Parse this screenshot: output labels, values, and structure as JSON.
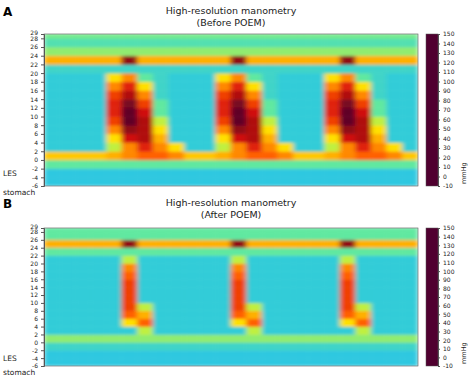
{
  "chart_data": [
    {
      "type": "heatmap",
      "panel": "A",
      "title": "High-resolution manometry",
      "subtitle": "(Before POEM)",
      "xlim": [
        0,
        24
      ],
      "ylim": [
        -6,
        29
      ],
      "yticks": [
        29,
        28,
        26,
        24,
        22,
        20,
        18,
        16,
        14,
        12,
        10,
        8,
        6,
        4,
        2,
        0,
        -2,
        -4,
        -6
      ],
      "tick_labels": "y",
      "annotations": [
        {
          "text": "LES",
          "y": -3
        },
        {
          "text": "stomach",
          "y": -7.5
        }
      ],
      "x_edges": [
        0,
        1,
        2,
        3,
        4,
        5,
        6,
        7,
        8,
        9,
        10,
        11,
        12,
        13,
        14,
        15,
        16,
        17,
        18,
        19,
        20,
        21,
        22,
        23,
        24
      ],
      "y_edges": [
        -6,
        -4,
        -2,
        0,
        2,
        4,
        6,
        8,
        10,
        12,
        14,
        16,
        18,
        20,
        22,
        24,
        26,
        28,
        29
      ],
      "z": [
        [
          12,
          12,
          12,
          12,
          12,
          12,
          12,
          12,
          12,
          12,
          12,
          12,
          12,
          12,
          12,
          12,
          12,
          12,
          12,
          12,
          12,
          12,
          12,
          12
        ],
        [
          12,
          12,
          12,
          12,
          12,
          12,
          12,
          12,
          12,
          12,
          12,
          12,
          12,
          12,
          12,
          12,
          12,
          12,
          12,
          12,
          12,
          12,
          12,
          12
        ],
        [
          20,
          20,
          20,
          20,
          20,
          20,
          20,
          20,
          20,
          20,
          20,
          20,
          20,
          20,
          20,
          20,
          20,
          20,
          20,
          20,
          20,
          20,
          20,
          20
        ],
        [
          45,
          45,
          45,
          45,
          50,
          60,
          70,
          70,
          60,
          45,
          45,
          50,
          60,
          70,
          70,
          60,
          45,
          45,
          50,
          60,
          70,
          70,
          60,
          45
        ],
        [
          13,
          13,
          13,
          13,
          30,
          60,
          90,
          60,
          40,
          13,
          13,
          30,
          60,
          90,
          60,
          40,
          13,
          13,
          30,
          60,
          90,
          60,
          40,
          13
        ],
        [
          13,
          13,
          13,
          13,
          40,
          100,
          110,
          50,
          13,
          13,
          13,
          40,
          100,
          110,
          50,
          13,
          13,
          13,
          40,
          100,
          110,
          50,
          13,
          13
        ],
        [
          13,
          13,
          13,
          13,
          60,
          120,
          110,
          40,
          13,
          13,
          13,
          60,
          120,
          110,
          40,
          13,
          13,
          13,
          60,
          120,
          110,
          40,
          13,
          13
        ],
        [
          13,
          13,
          13,
          13,
          80,
          140,
          110,
          30,
          13,
          13,
          13,
          80,
          140,
          110,
          30,
          13,
          13,
          13,
          80,
          140,
          110,
          30,
          13,
          13
        ],
        [
          13,
          13,
          13,
          13,
          90,
          140,
          100,
          20,
          13,
          13,
          13,
          90,
          140,
          100,
          20,
          13,
          13,
          13,
          90,
          140,
          100,
          20,
          13,
          13
        ],
        [
          13,
          13,
          13,
          13,
          90,
          130,
          80,
          20,
          13,
          13,
          13,
          90,
          130,
          80,
          20,
          13,
          13,
          13,
          90,
          130,
          80,
          20,
          13,
          13
        ],
        [
          13,
          13,
          13,
          13,
          80,
          110,
          60,
          15,
          13,
          13,
          13,
          80,
          110,
          60,
          15,
          13,
          13,
          13,
          80,
          110,
          60,
          15,
          13,
          13
        ],
        [
          13,
          13,
          13,
          13,
          60,
          90,
          40,
          15,
          13,
          13,
          13,
          60,
          90,
          40,
          15,
          13,
          13,
          13,
          60,
          90,
          40,
          15,
          13,
          13
        ],
        [
          13,
          13,
          13,
          13,
          40,
          60,
          20,
          15,
          13,
          13,
          13,
          40,
          60,
          20,
          15,
          13,
          13,
          13,
          40,
          60,
          20,
          15,
          13,
          13
        ],
        [
          15,
          15,
          15,
          15,
          15,
          15,
          15,
          15,
          15,
          15,
          15,
          15,
          15,
          15,
          15,
          15,
          15,
          15,
          15,
          15,
          15,
          15,
          15,
          15
        ],
        [
          50,
          50,
          50,
          50,
          50,
          120,
          50,
          50,
          50,
          50,
          50,
          50,
          120,
          50,
          50,
          50,
          50,
          50,
          50,
          120,
          50,
          50,
          50,
          50
        ],
        [
          25,
          25,
          25,
          25,
          25,
          25,
          25,
          25,
          25,
          25,
          25,
          25,
          25,
          25,
          25,
          25,
          25,
          25,
          25,
          25,
          25,
          25,
          25,
          25
        ],
        [
          18,
          18,
          18,
          18,
          18,
          18,
          18,
          18,
          18,
          18,
          18,
          18,
          18,
          18,
          18,
          18,
          18,
          18,
          18,
          18,
          18,
          18,
          18,
          18
        ],
        [
          22,
          22,
          22,
          22,
          22,
          22,
          22,
          22,
          22,
          22,
          22,
          22,
          22,
          22,
          22,
          22,
          22,
          22,
          22,
          22,
          22,
          22,
          22,
          22
        ]
      ],
      "colorbar": {
        "range": [
          -10,
          150
        ],
        "ticks": [
          150,
          140,
          130,
          120,
          110,
          100,
          90,
          80,
          70,
          60,
          50,
          40,
          30,
          20,
          10,
          0,
          -10
        ],
        "label": "mmHg"
      }
    },
    {
      "type": "heatmap",
      "panel": "B",
      "title": "High-resolution manometry",
      "subtitle": "(After POEM)",
      "xlim": [
        0,
        24
      ],
      "ylim": [
        -6,
        29
      ],
      "yticks": [
        29,
        28,
        26,
        24,
        22,
        20,
        18,
        16,
        14,
        12,
        10,
        8,
        6,
        4,
        2,
        0,
        -2,
        -4,
        -6
      ],
      "tick_labels": "y",
      "annotations": [
        {
          "text": "LES",
          "y": -4
        },
        {
          "text": "stomach",
          "y": -7.5
        }
      ],
      "x_edges": [
        0,
        1,
        2,
        3,
        4,
        5,
        6,
        7,
        8,
        9,
        10,
        11,
        12,
        13,
        14,
        15,
        16,
        17,
        18,
        19,
        20,
        21,
        22,
        23,
        24
      ],
      "y_edges": [
        -6,
        -4,
        -2,
        0,
        2,
        4,
        6,
        8,
        10,
        12,
        14,
        16,
        18,
        20,
        22,
        24,
        26,
        28,
        29
      ],
      "z": [
        [
          12,
          12,
          12,
          12,
          12,
          12,
          12,
          12,
          12,
          12,
          12,
          12,
          12,
          12,
          12,
          12,
          12,
          12,
          12,
          12,
          12,
          12,
          12,
          12
        ],
        [
          12,
          12,
          12,
          12,
          12,
          12,
          12,
          12,
          12,
          12,
          12,
          12,
          12,
          12,
          12,
          12,
          12,
          12,
          12,
          12,
          12,
          12,
          12,
          12
        ],
        [
          15,
          15,
          15,
          15,
          15,
          15,
          15,
          15,
          15,
          15,
          15,
          15,
          15,
          15,
          15,
          15,
          15,
          15,
          15,
          15,
          15,
          15,
          15,
          15
        ],
        [
          25,
          25,
          25,
          25,
          25,
          25,
          25,
          25,
          25,
          25,
          25,
          25,
          25,
          25,
          25,
          25,
          25,
          25,
          25,
          25,
          25,
          25,
          25,
          25
        ],
        [
          13,
          13,
          13,
          13,
          13,
          13,
          30,
          13,
          13,
          13,
          13,
          13,
          13,
          30,
          13,
          13,
          13,
          13,
          13,
          13,
          30,
          13,
          13,
          13
        ],
        [
          13,
          13,
          13,
          13,
          13,
          40,
          70,
          13,
          13,
          13,
          13,
          13,
          40,
          70,
          13,
          13,
          13,
          13,
          13,
          40,
          70,
          13,
          13,
          13
        ],
        [
          13,
          13,
          13,
          13,
          13,
          70,
          50,
          13,
          13,
          13,
          13,
          13,
          70,
          50,
          13,
          13,
          13,
          13,
          13,
          70,
          50,
          13,
          13,
          13
        ],
        [
          13,
          13,
          13,
          13,
          13,
          80,
          30,
          13,
          13,
          13,
          13,
          13,
          80,
          30,
          13,
          13,
          13,
          13,
          13,
          80,
          30,
          13,
          13,
          13
        ],
        [
          13,
          13,
          13,
          13,
          13,
          80,
          13,
          13,
          13,
          13,
          13,
          13,
          80,
          13,
          13,
          13,
          13,
          13,
          13,
          80,
          13,
          13,
          13,
          13
        ],
        [
          13,
          13,
          13,
          13,
          13,
          80,
          13,
          13,
          13,
          13,
          13,
          13,
          80,
          13,
          13,
          13,
          13,
          13,
          13,
          80,
          13,
          13,
          13,
          13
        ],
        [
          13,
          13,
          13,
          13,
          13,
          80,
          13,
          13,
          13,
          13,
          13,
          13,
          80,
          13,
          13,
          13,
          13,
          13,
          13,
          80,
          13,
          13,
          13,
          13
        ],
        [
          13,
          13,
          13,
          13,
          13,
          70,
          13,
          13,
          13,
          13,
          13,
          13,
          70,
          13,
          13,
          13,
          13,
          13,
          13,
          70,
          13,
          13,
          13,
          13
        ],
        [
          13,
          13,
          13,
          13,
          13,
          60,
          13,
          13,
          13,
          13,
          13,
          13,
          60,
          13,
          13,
          13,
          13,
          13,
          13,
          60,
          13,
          13,
          13,
          13
        ],
        [
          13,
          13,
          13,
          13,
          13,
          30,
          13,
          13,
          13,
          13,
          13,
          13,
          30,
          13,
          13,
          13,
          13,
          13,
          13,
          30,
          13,
          13,
          13,
          13
        ],
        [
          20,
          20,
          20,
          20,
          20,
          20,
          20,
          20,
          20,
          20,
          20,
          20,
          20,
          20,
          20,
          20,
          20,
          20,
          20,
          20,
          20,
          20,
          20,
          20
        ],
        [
          50,
          50,
          50,
          50,
          50,
          120,
          50,
          50,
          50,
          50,
          50,
          50,
          120,
          50,
          50,
          50,
          50,
          50,
          50,
          120,
          50,
          50,
          50,
          50
        ],
        [
          20,
          20,
          20,
          20,
          20,
          20,
          20,
          20,
          20,
          20,
          20,
          20,
          20,
          20,
          20,
          20,
          20,
          20,
          20,
          20,
          20,
          20,
          20,
          20
        ],
        [
          20,
          20,
          20,
          20,
          20,
          20,
          20,
          20,
          20,
          20,
          20,
          20,
          20,
          20,
          20,
          20,
          20,
          20,
          20,
          20,
          20,
          20,
          20,
          20
        ]
      ],
      "colorbar": {
        "range": [
          -10,
          150
        ],
        "ticks": [
          150,
          140,
          130,
          120,
          110,
          100,
          90,
          80,
          70,
          60,
          50,
          40,
          30,
          20,
          10,
          0,
          -10
        ],
        "label": "mmHg"
      }
    }
  ]
}
